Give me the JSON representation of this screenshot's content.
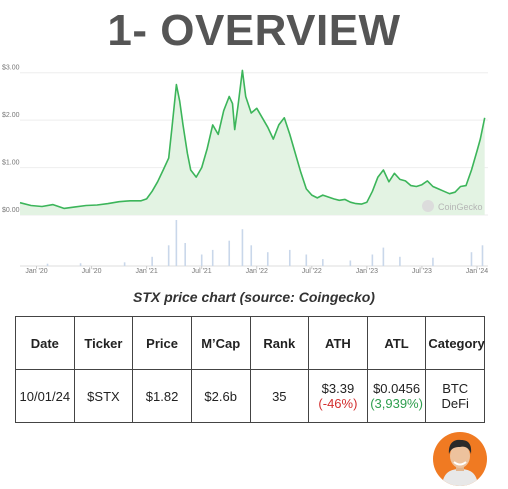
{
  "page": {
    "title": "1- OVERVIEW",
    "caption": "STX price chart (source: Coingecko)"
  },
  "chart_data": {
    "type": "area",
    "watermark": "CoinGecko",
    "y_ticks": [
      "$3.00",
      "$2.00",
      "$1.00",
      "$0.00"
    ],
    "ylim": [
      0,
      3.1
    ],
    "x_ticks": [
      {
        "label": "Jan '20",
        "t": 2020.0
      },
      {
        "label": "Jul '20",
        "t": 2020.5
      },
      {
        "label": "Jan '21",
        "t": 2021.0
      },
      {
        "label": "Jul '21",
        "t": 2021.5
      },
      {
        "label": "Jan '22",
        "t": 2022.0
      },
      {
        "label": "Jul '22",
        "t": 2022.5
      },
      {
        "label": "Jan '23",
        "t": 2023.0
      },
      {
        "label": "Jul '23",
        "t": 2023.5
      },
      {
        "label": "Jan '24",
        "t": 2024.0
      }
    ],
    "xlim": [
      2019.85,
      2024.1
    ],
    "line_color": "#3cb55a",
    "fill_color": "#e3f3e3",
    "volume_color": "#c9d7ea",
    "series": [
      {
        "values": [
          [
            2019.85,
            0.26
          ],
          [
            2019.95,
            0.2
          ],
          [
            2020.05,
            0.18
          ],
          [
            2020.15,
            0.22
          ],
          [
            2020.25,
            0.14
          ],
          [
            2020.35,
            0.17
          ],
          [
            2020.45,
            0.2
          ],
          [
            2020.55,
            0.21
          ],
          [
            2020.65,
            0.24
          ],
          [
            2020.75,
            0.28
          ],
          [
            2020.85,
            0.3
          ],
          [
            2020.95,
            0.3
          ],
          [
            2021.0,
            0.34
          ],
          [
            2021.05,
            0.5
          ],
          [
            2021.1,
            0.7
          ],
          [
            2021.15,
            0.95
          ],
          [
            2021.2,
            1.2
          ],
          [
            2021.23,
            1.85
          ],
          [
            2021.27,
            2.75
          ],
          [
            2021.3,
            2.4
          ],
          [
            2021.33,
            1.9
          ],
          [
            2021.37,
            1.3
          ],
          [
            2021.4,
            0.95
          ],
          [
            2021.45,
            0.8
          ],
          [
            2021.5,
            1.0
          ],
          [
            2021.55,
            1.4
          ],
          [
            2021.6,
            1.9
          ],
          [
            2021.65,
            1.7
          ],
          [
            2021.7,
            2.2
          ],
          [
            2021.75,
            2.5
          ],
          [
            2021.78,
            2.35
          ],
          [
            2021.8,
            1.8
          ],
          [
            2021.83,
            2.3
          ],
          [
            2021.87,
            3.05
          ],
          [
            2021.9,
            2.5
          ],
          [
            2021.95,
            2.15
          ],
          [
            2022.0,
            2.25
          ],
          [
            2022.05,
            2.05
          ],
          [
            2022.1,
            1.85
          ],
          [
            2022.15,
            1.6
          ],
          [
            2022.2,
            1.9
          ],
          [
            2022.25,
            2.05
          ],
          [
            2022.3,
            1.7
          ],
          [
            2022.35,
            1.3
          ],
          [
            2022.4,
            0.9
          ],
          [
            2022.45,
            0.55
          ],
          [
            2022.5,
            0.42
          ],
          [
            2022.55,
            0.36
          ],
          [
            2022.6,
            0.42
          ],
          [
            2022.65,
            0.38
          ],
          [
            2022.7,
            0.34
          ],
          [
            2022.75,
            0.31
          ],
          [
            2022.8,
            0.33
          ],
          [
            2022.85,
            0.27
          ],
          [
            2022.9,
            0.24
          ],
          [
            2022.95,
            0.23
          ],
          [
            2023.0,
            0.27
          ],
          [
            2023.05,
            0.5
          ],
          [
            2023.1,
            0.8
          ],
          [
            2023.15,
            0.95
          ],
          [
            2023.2,
            0.7
          ],
          [
            2023.25,
            0.88
          ],
          [
            2023.3,
            0.75
          ],
          [
            2023.35,
            0.72
          ],
          [
            2023.4,
            0.62
          ],
          [
            2023.45,
            0.6
          ],
          [
            2023.5,
            0.64
          ],
          [
            2023.55,
            0.72
          ],
          [
            2023.6,
            0.6
          ],
          [
            2023.65,
            0.55
          ],
          [
            2023.7,
            0.5
          ],
          [
            2023.75,
            0.45
          ],
          [
            2023.8,
            0.48
          ],
          [
            2023.85,
            0.6
          ],
          [
            2023.9,
            0.62
          ],
          [
            2023.95,
            0.95
          ],
          [
            2024.0,
            1.35
          ],
          [
            2024.03,
            1.6
          ],
          [
            2024.07,
            2.05
          ]
        ]
      }
    ],
    "volume": [
      [
        2020.1,
        0.05
      ],
      [
        2020.4,
        0.06
      ],
      [
        2020.8,
        0.08
      ],
      [
        2021.05,
        0.2
      ],
      [
        2021.2,
        0.45
      ],
      [
        2021.27,
        1.0
      ],
      [
        2021.35,
        0.5
      ],
      [
        2021.5,
        0.25
      ],
      [
        2021.6,
        0.35
      ],
      [
        2021.75,
        0.55
      ],
      [
        2021.87,
        0.8
      ],
      [
        2021.95,
        0.45
      ],
      [
        2022.1,
        0.3
      ],
      [
        2022.3,
        0.35
      ],
      [
        2022.45,
        0.25
      ],
      [
        2022.6,
        0.15
      ],
      [
        2022.85,
        0.12
      ],
      [
        2023.05,
        0.25
      ],
      [
        2023.15,
        0.4
      ],
      [
        2023.3,
        0.2
      ],
      [
        2023.6,
        0.18
      ],
      [
        2023.95,
        0.3
      ],
      [
        2024.05,
        0.45
      ]
    ]
  },
  "table": {
    "headers": [
      "Date",
      "Ticker",
      "Price",
      "M’Cap",
      "Rank",
      "ATH",
      "ATL",
      "Category"
    ],
    "row": {
      "date": "10/01/24",
      "ticker": "$STX",
      "price": "$1.82",
      "mcap": "$2.6b",
      "rank": "35",
      "ath": "$3.39",
      "ath_change": "(-46%)",
      "atl": "$0.0456",
      "atl_change": "(3,939%)",
      "category": "BTC DeFi"
    }
  },
  "avatar": {
    "bg_color": "#f07a22",
    "icon": "person-avatar-icon"
  }
}
